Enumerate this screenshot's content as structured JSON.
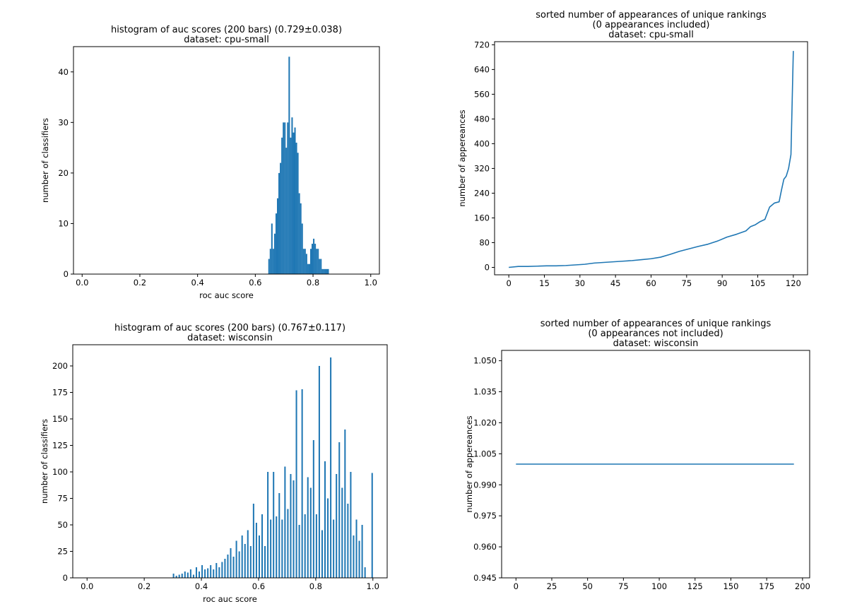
{
  "colors": {
    "bar": "#1f77b4",
    "line": "#1f77b4",
    "axis": "#000000",
    "background": "#ffffff"
  },
  "chart_data": [
    {
      "id": "c1",
      "type": "bar",
      "title": [
        "histogram of auc scores (200 bars) (0.729±0.038)",
        "dataset: cpu-small"
      ],
      "xlabel": "roc auc score",
      "ylabel": "number of classifiers",
      "xlim": [
        -0.03,
        1.03
      ],
      "ylim": [
        0,
        45
      ],
      "xticks": [
        0,
        0.2,
        0.4,
        0.6,
        0.8,
        1.0
      ],
      "xtick_labels": [
        "0.0",
        "0.2",
        "0.4",
        "0.6",
        "0.8",
        "1.0"
      ],
      "yticks": [
        0,
        10,
        20,
        30,
        40
      ],
      "ytick_labels": [
        "0",
        "10",
        "20",
        "30",
        "40"
      ],
      "bin_width": 0.005,
      "bins": [
        [
          0.645,
          3
        ],
        [
          0.65,
          5
        ],
        [
          0.655,
          10
        ],
        [
          0.66,
          5
        ],
        [
          0.665,
          8
        ],
        [
          0.67,
          12
        ],
        [
          0.675,
          15
        ],
        [
          0.68,
          20
        ],
        [
          0.685,
          22
        ],
        [
          0.69,
          27
        ],
        [
          0.695,
          30
        ],
        [
          0.7,
          30
        ],
        [
          0.705,
          25
        ],
        [
          0.71,
          30
        ],
        [
          0.715,
          43
        ],
        [
          0.72,
          27
        ],
        [
          0.725,
          31
        ],
        [
          0.73,
          28
        ],
        [
          0.735,
          29
        ],
        [
          0.74,
          26
        ],
        [
          0.745,
          24
        ],
        [
          0.75,
          16
        ],
        [
          0.755,
          14
        ],
        [
          0.76,
          10
        ],
        [
          0.765,
          5
        ],
        [
          0.77,
          5
        ],
        [
          0.775,
          4
        ],
        [
          0.78,
          2
        ],
        [
          0.785,
          2
        ],
        [
          0.79,
          5
        ],
        [
          0.795,
          6
        ],
        [
          0.8,
          7
        ],
        [
          0.805,
          6
        ],
        [
          0.81,
          5
        ],
        [
          0.815,
          5
        ],
        [
          0.82,
          3
        ],
        [
          0.825,
          3
        ],
        [
          0.83,
          1
        ],
        [
          0.835,
          1
        ],
        [
          0.84,
          1
        ],
        [
          0.845,
          1
        ],
        [
          0.85,
          1
        ]
      ]
    },
    {
      "id": "c2",
      "type": "line",
      "title": [
        "sorted number of appearances of unique rankings",
        "(0 appearances included)",
        "dataset: cpu-small"
      ],
      "xlabel": "",
      "ylabel": "number of appereances",
      "xlim": [
        -6,
        126
      ],
      "ylim": [
        -24,
        730
      ],
      "xticks": [
        0,
        15,
        30,
        45,
        60,
        75,
        90,
        105,
        120
      ],
      "xtick_labels": [
        "0",
        "15",
        "30",
        "45",
        "60",
        "75",
        "90",
        "105",
        "120"
      ],
      "yticks": [
        0,
        80,
        160,
        240,
        320,
        400,
        480,
        560,
        640,
        720
      ],
      "ytick_labels": [
        "0",
        "80",
        "160",
        "240",
        "320",
        "400",
        "480",
        "560",
        "640",
        "720"
      ],
      "points": [
        [
          0,
          0
        ],
        [
          4,
          3
        ],
        [
          8,
          3
        ],
        [
          12,
          4
        ],
        [
          16,
          5
        ],
        [
          20,
          5
        ],
        [
          24,
          6
        ],
        [
          28,
          8
        ],
        [
          32,
          10
        ],
        [
          36,
          14
        ],
        [
          40,
          16
        ],
        [
          44,
          18
        ],
        [
          48,
          20
        ],
        [
          52,
          22
        ],
        [
          56,
          25
        ],
        [
          60,
          28
        ],
        [
          64,
          33
        ],
        [
          68,
          42
        ],
        [
          72,
          52
        ],
        [
          76,
          60
        ],
        [
          80,
          68
        ],
        [
          84,
          75
        ],
        [
          88,
          85
        ],
        [
          92,
          98
        ],
        [
          96,
          107
        ],
        [
          100,
          118
        ],
        [
          102,
          132
        ],
        [
          104,
          138
        ],
        [
          106,
          148
        ],
        [
          108,
          155
        ],
        [
          110,
          195
        ],
        [
          112,
          208
        ],
        [
          114,
          212
        ],
        [
          115,
          250
        ],
        [
          116,
          285
        ],
        [
          117,
          295
        ],
        [
          118,
          320
        ],
        [
          119,
          365
        ],
        [
          120,
          700
        ]
      ]
    },
    {
      "id": "c3",
      "type": "bar",
      "title": [
        "histogram of auc scores (200 bars) (0.767±0.117)",
        "dataset: wisconsin"
      ],
      "xlabel": "roc auc score",
      "ylabel": "number of classifiers",
      "xlim": [
        -0.05,
        1.05
      ],
      "ylim": [
        0,
        220
      ],
      "xticks": [
        0,
        0.2,
        0.4,
        0.6,
        0.8,
        1.0
      ],
      "xtick_labels": [
        "0.0",
        "0.2",
        "0.4",
        "0.6",
        "0.8",
        "1.0"
      ],
      "yticks": [
        0,
        25,
        50,
        75,
        100,
        125,
        150,
        175,
        200
      ],
      "ytick_labels": [
        "0",
        "25",
        "50",
        "75",
        "100",
        "125",
        "150",
        "175",
        "200"
      ],
      "bin_width": 0.005,
      "bins": [
        [
          0.3,
          4
        ],
        [
          0.31,
          2
        ],
        [
          0.32,
          3
        ],
        [
          0.33,
          4
        ],
        [
          0.34,
          6
        ],
        [
          0.35,
          5
        ],
        [
          0.36,
          8
        ],
        [
          0.37,
          3
        ],
        [
          0.38,
          10
        ],
        [
          0.39,
          6
        ],
        [
          0.4,
          12
        ],
        [
          0.41,
          8
        ],
        [
          0.42,
          9
        ],
        [
          0.43,
          12
        ],
        [
          0.44,
          8
        ],
        [
          0.45,
          14
        ],
        [
          0.46,
          10
        ],
        [
          0.47,
          15
        ],
        [
          0.48,
          18
        ],
        [
          0.49,
          22
        ],
        [
          0.5,
          28
        ],
        [
          0.51,
          20
        ],
        [
          0.52,
          35
        ],
        [
          0.53,
          25
        ],
        [
          0.54,
          40
        ],
        [
          0.55,
          32
        ],
        [
          0.56,
          45
        ],
        [
          0.57,
          30
        ],
        [
          0.58,
          70
        ],
        [
          0.59,
          52
        ],
        [
          0.6,
          40
        ],
        [
          0.61,
          60
        ],
        [
          0.62,
          30
        ],
        [
          0.63,
          100
        ],
        [
          0.64,
          55
        ],
        [
          0.65,
          100
        ],
        [
          0.66,
          58
        ],
        [
          0.67,
          80
        ],
        [
          0.68,
          55
        ],
        [
          0.69,
          105
        ],
        [
          0.7,
          65
        ],
        [
          0.71,
          98
        ],
        [
          0.72,
          92
        ],
        [
          0.73,
          177
        ],
        [
          0.74,
          50
        ],
        [
          0.75,
          178
        ],
        [
          0.76,
          60
        ],
        [
          0.77,
          95
        ],
        [
          0.78,
          85
        ],
        [
          0.79,
          130
        ],
        [
          0.8,
          60
        ],
        [
          0.81,
          200
        ],
        [
          0.82,
          45
        ],
        [
          0.83,
          110
        ],
        [
          0.84,
          75
        ],
        [
          0.85,
          208
        ],
        [
          0.86,
          55
        ],
        [
          0.87,
          98
        ],
        [
          0.88,
          128
        ],
        [
          0.89,
          85
        ],
        [
          0.9,
          140
        ],
        [
          0.91,
          70
        ],
        [
          0.92,
          100
        ],
        [
          0.93,
          40
        ],
        [
          0.94,
          55
        ],
        [
          0.95,
          35
        ],
        [
          0.96,
          50
        ],
        [
          0.97,
          10
        ],
        [
          0.995,
          99
        ]
      ]
    },
    {
      "id": "c4",
      "type": "line",
      "title": [
        "sorted number of appearances of unique rankings",
        "(0 appearances not included)",
        "dataset: wisconsin"
      ],
      "xlabel": "",
      "ylabel": "number of appereances",
      "xlim": [
        -10,
        205
      ],
      "ylim": [
        0.945,
        1.055
      ],
      "xticks": [
        0,
        25,
        50,
        75,
        100,
        125,
        150,
        175,
        200
      ],
      "xtick_labels": [
        "0",
        "25",
        "50",
        "75",
        "100",
        "125",
        "150",
        "175",
        "200"
      ],
      "yticks": [
        0.945,
        0.96,
        0.975,
        0.99,
        1.005,
        1.02,
        1.035,
        1.05
      ],
      "ytick_labels": [
        "0.945",
        "0.960",
        "0.975",
        "0.990",
        "1.005",
        "1.020",
        "1.035",
        "1.050"
      ],
      "points": [
        [
          0,
          1.0
        ],
        [
          194,
          1.0
        ]
      ]
    }
  ]
}
